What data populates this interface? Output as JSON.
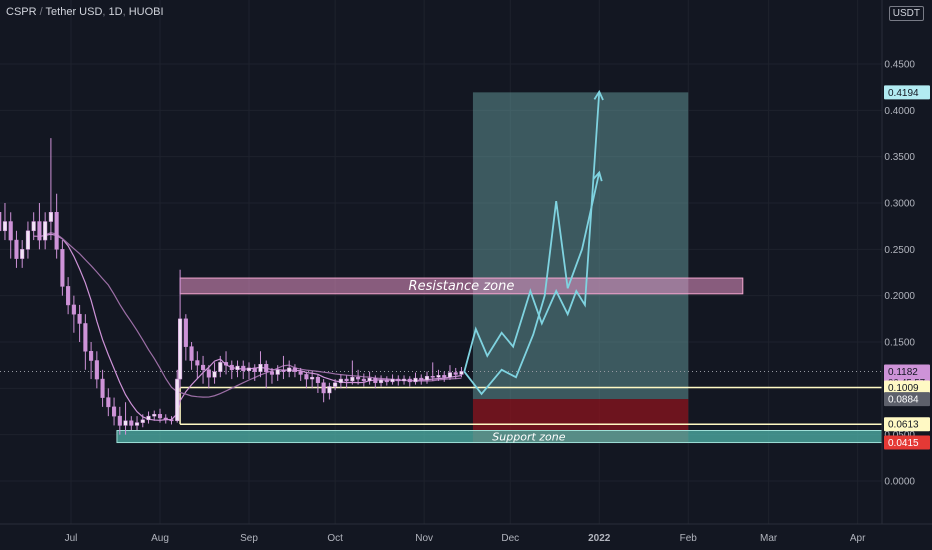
{
  "header": {
    "symbol": "CSPR",
    "quote": "Tether USD",
    "interval": "1D",
    "exchange": "HUOBI",
    "currency_badge": "USDT"
  },
  "colors": {
    "background": "#131722",
    "grid": "#1e222d",
    "candle": "#f1e4f5",
    "candle_outline": "#ce93d8",
    "ma_fast": "#ce93d8",
    "ma_slow": "#9c6fa6",
    "projection": "#7fd3e0",
    "resistance_fill": "rgba(233,150,200,0.55)",
    "support_fill": "rgba(80,180,170,0.75)",
    "target_fill": "rgba(110,170,170,0.45)",
    "stop_fill": "rgba(140,20,30,0.75)",
    "level_line": "#fff9c4"
  },
  "chart_data": {
    "type": "line",
    "title": "CSPR / Tether USD, 1D, HUOBI",
    "xlabel": "",
    "ylabel": "",
    "x_ticks": [
      "Jul",
      "Aug",
      "Sep",
      "Oct",
      "Nov",
      "Dec",
      "2022",
      "Feb",
      "Mar",
      "Apr"
    ],
    "y_ticks": [
      "0.0000",
      "0.0500",
      "0.1000",
      "0.1500",
      "0.2000",
      "0.2500",
      "0.3000",
      "0.3500",
      "0.4000",
      "0.4500"
    ],
    "ylim": [
      -0.02,
      0.5
    ],
    "grid": true,
    "price_labels": [
      {
        "text": "0.4194",
        "value": 0.4194,
        "style": "target"
      },
      {
        "text": "0.1182",
        "value": 0.1182,
        "style": "current",
        "sub": "06:45:57"
      },
      {
        "text": "0.1009",
        "value": 0.1009,
        "style": "level"
      },
      {
        "text": "0.0884",
        "value": 0.0884,
        "style": "entry"
      },
      {
        "text": "0.0613",
        "value": 0.0613,
        "style": "level"
      },
      {
        "text": "0.0415",
        "value": 0.0415,
        "style": "stop"
      }
    ],
    "zones": [
      {
        "label": "Resistance zone",
        "low": 0.202,
        "high": 0.219,
        "from": "Aug 8",
        "to": "Feb 20",
        "style": "resistance"
      },
      {
        "label": "Support zone",
        "low": 0.0415,
        "high": 0.0545,
        "from": "Jul 17",
        "to": "Apr 30",
        "style": "support"
      }
    ],
    "position": {
      "entry": 0.0884,
      "target": 0.4194,
      "stop": 0.0415,
      "from": "Nov 18",
      "to": "Feb 1"
    },
    "level_lines": [
      {
        "value": 0.1009,
        "from": "Aug 8",
        "to": "Apr 30"
      },
      {
        "value": 0.0613,
        "from": "Aug 8",
        "to": "Apr 30"
      }
    ],
    "current_price": 0.1182,
    "candles": [
      [
        "Jun 6",
        0.29,
        0.27,
        0.33,
        0.25
      ],
      [
        "Jun 8",
        0.27,
        0.28,
        0.3,
        0.26
      ],
      [
        "Jun 10",
        0.28,
        0.26,
        0.29,
        0.24
      ],
      [
        "Jun 12",
        0.26,
        0.24,
        0.27,
        0.23
      ],
      [
        "Jun 14",
        0.24,
        0.25,
        0.26,
        0.23
      ],
      [
        "Jun 16",
        0.25,
        0.27,
        0.28,
        0.24
      ],
      [
        "Jun 18",
        0.27,
        0.28,
        0.29,
        0.26
      ],
      [
        "Jun 20",
        0.28,
        0.26,
        0.3,
        0.25
      ],
      [
        "Jun 22",
        0.26,
        0.28,
        0.29,
        0.25
      ],
      [
        "Jun 24",
        0.28,
        0.29,
        0.37,
        0.26
      ],
      [
        "Jun 26",
        0.29,
        0.25,
        0.31,
        0.24
      ],
      [
        "Jun 28",
        0.25,
        0.21,
        0.26,
        0.2
      ],
      [
        "Jun 30",
        0.21,
        0.19,
        0.22,
        0.18
      ],
      [
        "Jul 2",
        0.19,
        0.18,
        0.2,
        0.16
      ],
      [
        "Jul 4",
        0.18,
        0.17,
        0.19,
        0.15
      ],
      [
        "Jul 6",
        0.17,
        0.14,
        0.18,
        0.12
      ],
      [
        "Jul 8",
        0.14,
        0.13,
        0.15,
        0.11
      ],
      [
        "Jul 10",
        0.13,
        0.11,
        0.14,
        0.1
      ],
      [
        "Jul 12",
        0.11,
        0.09,
        0.12,
        0.08
      ],
      [
        "Jul 14",
        0.09,
        0.08,
        0.1,
        0.07
      ],
      [
        "Jul 16",
        0.08,
        0.07,
        0.09,
        0.06
      ],
      [
        "Jul 18",
        0.07,
        0.06,
        0.08,
        0.05
      ],
      [
        "Jul 20",
        0.06,
        0.065,
        0.085,
        0.05
      ],
      [
        "Jul 22",
        0.065,
        0.06,
        0.07,
        0.055
      ],
      [
        "Jul 24",
        0.06,
        0.063,
        0.07,
        0.055
      ],
      [
        "Jul 26",
        0.063,
        0.066,
        0.072,
        0.058
      ],
      [
        "Jul 28",
        0.066,
        0.07,
        0.075,
        0.062
      ],
      [
        "Jul 30",
        0.07,
        0.072,
        0.076,
        0.065
      ],
      [
        "Aug 1",
        0.072,
        0.068,
        0.078,
        0.063
      ],
      [
        "Aug 3",
        0.068,
        0.066,
        0.072,
        0.062
      ],
      [
        "Aug 5",
        0.066,
        0.065,
        0.07,
        0.061
      ],
      [
        "Aug 7",
        0.065,
        0.11,
        0.12,
        0.063
      ],
      [
        "Aug 8",
        0.11,
        0.175,
        0.228,
        0.1
      ],
      [
        "Aug 10",
        0.175,
        0.145,
        0.18,
        0.13
      ],
      [
        "Aug 12",
        0.145,
        0.13,
        0.15,
        0.12
      ],
      [
        "Aug 14",
        0.13,
        0.125,
        0.14,
        0.11
      ],
      [
        "Aug 16",
        0.125,
        0.12,
        0.135,
        0.105
      ],
      [
        "Aug 18",
        0.12,
        0.112,
        0.125,
        0.1
      ],
      [
        "Aug 20",
        0.112,
        0.118,
        0.128,
        0.105
      ],
      [
        "Aug 22",
        0.118,
        0.128,
        0.135,
        0.112
      ],
      [
        "Aug 24",
        0.128,
        0.125,
        0.14,
        0.115
      ],
      [
        "Aug 26",
        0.125,
        0.12,
        0.13,
        0.11
      ],
      [
        "Aug 28",
        0.12,
        0.124,
        0.13,
        0.112
      ],
      [
        "Aug 30",
        0.124,
        0.119,
        0.13,
        0.11
      ],
      [
        "Sep 1",
        0.119,
        0.122,
        0.128,
        0.11
      ],
      [
        "Sep 3",
        0.122,
        0.118,
        0.126,
        0.108
      ],
      [
        "Sep 5",
        0.118,
        0.126,
        0.14,
        0.112
      ],
      [
        "Sep 7",
        0.126,
        0.118,
        0.13,
        0.1
      ],
      [
        "Sep 9",
        0.118,
        0.115,
        0.122,
        0.105
      ],
      [
        "Sep 11",
        0.115,
        0.12,
        0.125,
        0.108
      ],
      [
        "Sep 13",
        0.12,
        0.118,
        0.135,
        0.11
      ],
      [
        "Sep 15",
        0.118,
        0.122,
        0.13,
        0.112
      ],
      [
        "Sep 17",
        0.122,
        0.118,
        0.126,
        0.112
      ],
      [
        "Sep 19",
        0.118,
        0.115,
        0.122,
        0.108
      ],
      [
        "Sep 21",
        0.115,
        0.11,
        0.118,
        0.1
      ],
      [
        "Sep 23",
        0.11,
        0.112,
        0.118,
        0.1
      ],
      [
        "Sep 25",
        0.112,
        0.106,
        0.115,
        0.095
      ],
      [
        "Sep 27",
        0.106,
        0.095,
        0.11,
        0.085
      ],
      [
        "Sep 29",
        0.095,
        0.102,
        0.106,
        0.088
      ],
      [
        "Oct 1",
        0.102,
        0.106,
        0.11,
        0.098
      ],
      [
        "Oct 3",
        0.106,
        0.11,
        0.115,
        0.1
      ],
      [
        "Oct 5",
        0.11,
        0.108,
        0.114,
        0.1
      ],
      [
        "Oct 7",
        0.108,
        0.112,
        0.13,
        0.104
      ],
      [
        "Oct 9",
        0.112,
        0.11,
        0.12,
        0.104
      ],
      [
        "Oct 11",
        0.11,
        0.108,
        0.116,
        0.102
      ],
      [
        "Oct 13",
        0.108,
        0.111,
        0.118,
        0.104
      ],
      [
        "Oct 15",
        0.111,
        0.106,
        0.114,
        0.1
      ],
      [
        "Oct 17",
        0.106,
        0.109,
        0.114,
        0.102
      ],
      [
        "Oct 19",
        0.109,
        0.107,
        0.113,
        0.103
      ],
      [
        "Oct 21",
        0.107,
        0.11,
        0.115,
        0.104
      ],
      [
        "Oct 23",
        0.11,
        0.108,
        0.114,
        0.103
      ],
      [
        "Oct 25",
        0.108,
        0.11,
        0.114,
        0.104
      ],
      [
        "Oct 27",
        0.11,
        0.107,
        0.113,
        0.102
      ],
      [
        "Oct 29",
        0.107,
        0.111,
        0.117,
        0.104
      ],
      [
        "Oct 31",
        0.111,
        0.109,
        0.115,
        0.104
      ],
      [
        "Nov 2",
        0.109,
        0.113,
        0.118,
        0.105
      ],
      [
        "Nov 4",
        0.113,
        0.112,
        0.128,
        0.108
      ],
      [
        "Nov 6",
        0.112,
        0.114,
        0.12,
        0.108
      ],
      [
        "Nov 8",
        0.114,
        0.112,
        0.118,
        0.107
      ],
      [
        "Nov 10",
        0.112,
        0.117,
        0.125,
        0.109
      ],
      [
        "Nov 12",
        0.117,
        0.115,
        0.122,
        0.11
      ],
      [
        "Nov 14",
        0.115,
        0.1182,
        0.123,
        0.112
      ]
    ],
    "projection_paths": [
      {
        "points": [
          [
            "Nov 15",
            0.118
          ],
          [
            "Nov 21",
            0.094
          ],
          [
            "Nov 28",
            0.12
          ],
          [
            "Dec 3",
            0.112
          ],
          [
            "Dec 9",
            0.158
          ],
          [
            "Dec 13",
            0.2
          ],
          [
            "Dec 17",
            0.302
          ],
          [
            "Dec 21",
            0.208
          ],
          [
            "Dec 26",
            0.25
          ],
          [
            "Jan 1",
            0.333
          ]
        ]
      },
      {
        "points": [
          [
            "Nov 15",
            0.118
          ],
          [
            "Nov 19",
            0.164
          ],
          [
            "Nov 23",
            0.135
          ],
          [
            "Nov 28",
            0.16
          ],
          [
            "Dec 2",
            0.145
          ],
          [
            "Dec 8",
            0.205
          ],
          [
            "Dec 12",
            0.17
          ],
          [
            "Dec 17",
            0.205
          ],
          [
            "Dec 21",
            0.18
          ],
          [
            "Dec 24",
            0.205
          ],
          [
            "Dec 27",
            0.19
          ],
          [
            "Jan 1",
            0.42
          ]
        ]
      }
    ]
  }
}
